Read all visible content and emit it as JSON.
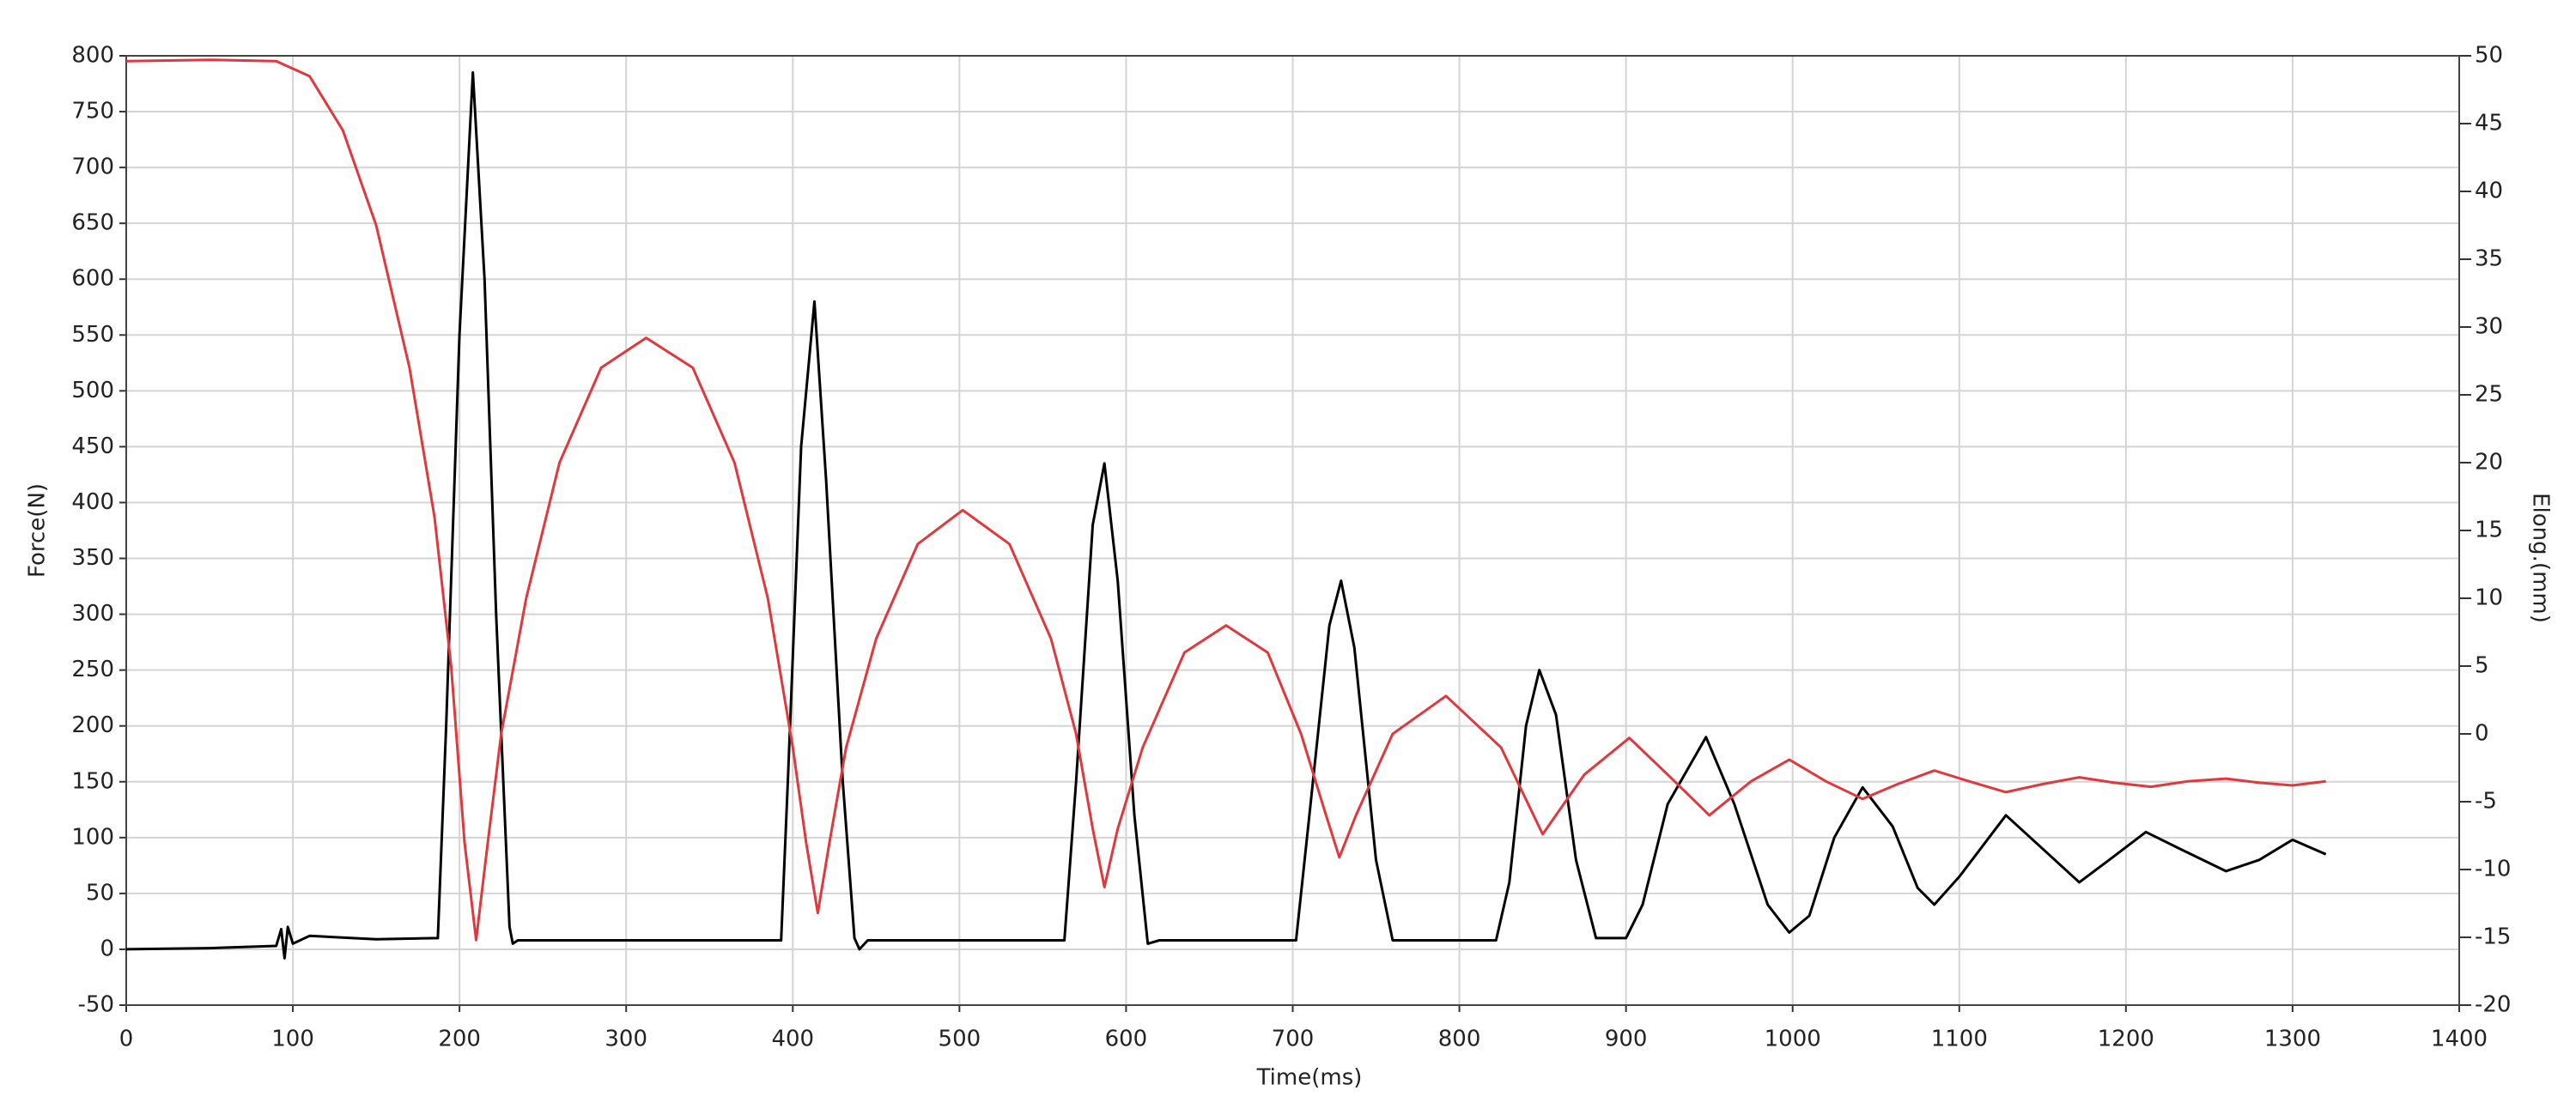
{
  "chart_data": {
    "type": "line",
    "xlabel": "Time(ms)",
    "ylabel": "Force(N)",
    "y2label": "Elong.(mm)",
    "grid": true,
    "xlim": [
      0,
      1400
    ],
    "xticks": [
      0,
      100,
      200,
      300,
      400,
      500,
      600,
      700,
      800,
      900,
      1000,
      1100,
      1200,
      1300,
      1400
    ],
    "ylim": [
      -50,
      800
    ],
    "yticks": [
      -50,
      0,
      50,
      100,
      150,
      200,
      250,
      300,
      350,
      400,
      450,
      500,
      550,
      600,
      650,
      700,
      750,
      800
    ],
    "y2lim": [
      -20,
      50
    ],
    "y2ticks": [
      -20,
      -15,
      -10,
      -5,
      0,
      5,
      10,
      15,
      20,
      25,
      30,
      35,
      40,
      45,
      50
    ],
    "series": [
      {
        "color": "#000000",
        "x": [
          0,
          50,
          90,
          93,
          95,
          97,
          100,
          110,
          150,
          187,
          192,
          200,
          208,
          215,
          222,
          230,
          232,
          235,
          393,
          397,
          405,
          413,
          420,
          430,
          437,
          440,
          445,
          563,
          570,
          580,
          587,
          595,
          605,
          613,
          620,
          702,
          710,
          722,
          729,
          737,
          750,
          760,
          822,
          830,
          840,
          848,
          858,
          870,
          882,
          900,
          910,
          925,
          948,
          965,
          985,
          998,
          1010,
          1025,
          1042,
          1060,
          1075,
          1085,
          1100,
          1128,
          1150,
          1172,
          1190,
          1212,
          1235,
          1260,
          1280,
          1300,
          1320
        ],
        "values": [
          0,
          1,
          3,
          18,
          -8,
          20,
          5,
          12,
          9,
          10,
          200,
          550,
          785,
          600,
          300,
          20,
          5,
          8,
          8,
          150,
          450,
          580,
          420,
          150,
          10,
          0,
          8,
          8,
          150,
          380,
          435,
          330,
          120,
          5,
          8,
          8,
          120,
          290,
          330,
          270,
          80,
          8,
          8,
          60,
          200,
          250,
          210,
          80,
          10,
          10,
          40,
          130,
          190,
          130,
          40,
          15,
          30,
          100,
          145,
          110,
          55,
          40,
          65,
          120,
          90,
          60,
          80,
          105,
          88,
          70,
          80,
          98,
          85
        ]
      },
      {
        "color": "#e0383c",
        "axis": "y2",
        "x": [
          0,
          50,
          90,
          110,
          130,
          150,
          170,
          185,
          195,
          203,
          210,
          217,
          225,
          240,
          260,
          285,
          312,
          340,
          365,
          385,
          400,
          408,
          415,
          422,
          432,
          450,
          475,
          502,
          530,
          555,
          570,
          580,
          587,
          595,
          610,
          635,
          660,
          685,
          705,
          720,
          728,
          738,
          760,
          792,
          825,
          850,
          875,
          902,
          925,
          950,
          975,
          998,
          1020,
          1042,
          1063,
          1085,
          1106,
          1128,
          1150,
          1172,
          1193,
          1215,
          1237,
          1260,
          1280,
          1300,
          1320
        ],
        "values": [
          49.6,
          49.7,
          49.6,
          48.5,
          44.5,
          37.5,
          27,
          16,
          5,
          -8,
          -15.2,
          -8,
          0,
          10,
          20,
          27,
          29.2,
          27,
          20,
          10,
          -1,
          -8,
          -13.2,
          -8,
          -1,
          7,
          14,
          16.5,
          14,
          7,
          0,
          -7,
          -11.3,
          -7,
          -1,
          6,
          8,
          6,
          0,
          -6,
          -9.1,
          -6,
          0,
          2.8,
          -1,
          -7.4,
          -3,
          -0.3,
          -3,
          -6,
          -3.5,
          -1.9,
          -3.5,
          -4.8,
          -3.7,
          -2.7,
          -3.5,
          -4.3,
          -3.7,
          -3.2,
          -3.6,
          -3.9,
          -3.5,
          -3.3,
          -3.6,
          -3.8,
          -3.5
        ]
      }
    ]
  }
}
